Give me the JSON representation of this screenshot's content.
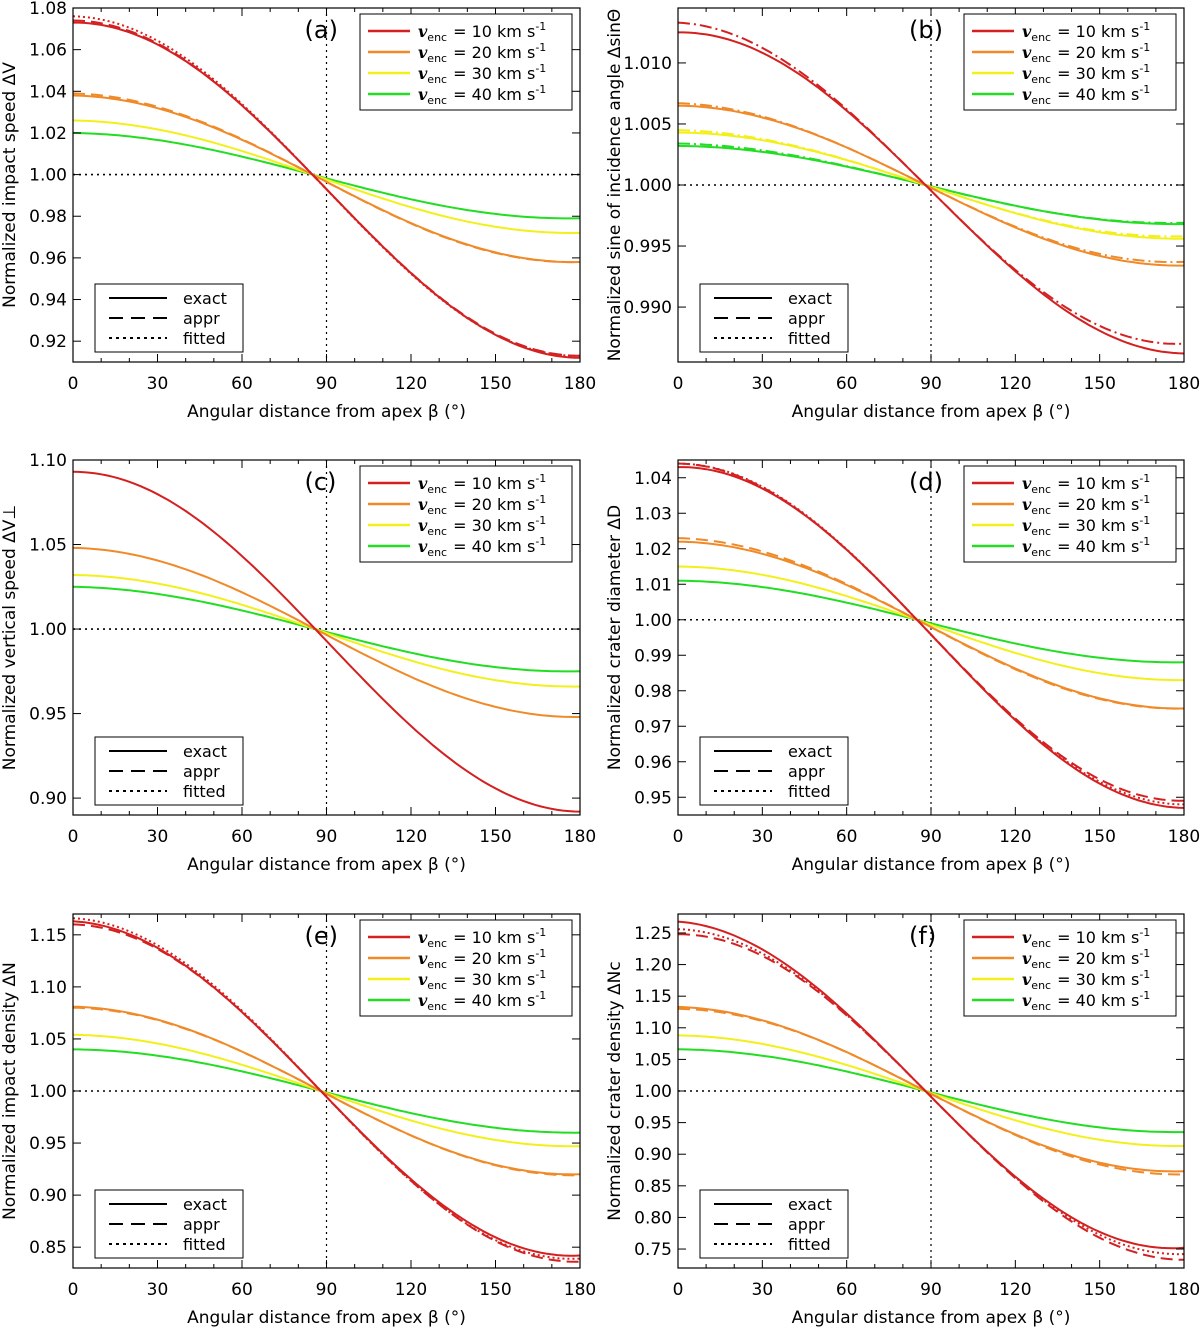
{
  "figure": {
    "x_label": "Angular distance from apex β (°)",
    "legend_velocity": [
      {
        "symbol": "v",
        "subscript": "enc",
        "value_text": "= 10 km s",
        "exponent": "-1",
        "color": "#d42020"
      },
      {
        "symbol": "v",
        "subscript": "enc",
        "value_text": "= 20 km s",
        "exponent": "-1",
        "color": "#f08a28"
      },
      {
        "symbol": "v",
        "subscript": "enc",
        "value_text": "= 30 km s",
        "exponent": "-1",
        "color": "#f2f01a"
      },
      {
        "symbol": "v",
        "subscript": "enc",
        "value_text": "= 40 km s",
        "exponent": "-1",
        "color": "#22dd22"
      }
    ],
    "legend_style": [
      {
        "label": "exact",
        "dash": "solid"
      },
      {
        "label": "appr",
        "dash": "dashed"
      },
      {
        "label": "fitted",
        "dash": "dotted"
      }
    ]
  },
  "chart_data": [
    {
      "panel": "(a)",
      "type": "line",
      "ylabel": "Normalized impact speed ΔV",
      "xlim": [
        0,
        180
      ],
      "ylim": [
        0.91,
        1.08
      ],
      "xticks": [
        "0",
        "30",
        "60",
        "90",
        "120",
        "150",
        "180"
      ],
      "yticks": [
        "0.92",
        "0.94",
        "0.96",
        "0.98",
        "1.00",
        "1.02",
        "1.04",
        "1.06",
        "1.08"
      ],
      "ytick_values": [
        0.92,
        0.94,
        0.96,
        0.98,
        1.0,
        1.02,
        1.04,
        1.06,
        1.08
      ],
      "ref_x": 90,
      "ref_y": 1.0,
      "cross": 85,
      "series": [
        {
          "name": "v_enc = 10 km s^-1",
          "color": "#d42020",
          "max": 1.073,
          "min": 0.912,
          "appr": [
            1.074,
            0.913
          ],
          "dashdot": false,
          "fitted": [
            1.076,
            0.913
          ]
        },
        {
          "name": "v_enc = 20 km s^-1",
          "color": "#f08a28",
          "max": 1.038,
          "min": 0.958,
          "appr": [
            1.039,
            0.958
          ],
          "dashdot": false,
          "fitted": null
        },
        {
          "name": "v_enc = 30 km s^-1",
          "color": "#f2f01a",
          "max": 1.026,
          "min": 0.972,
          "appr": null,
          "dashdot": false,
          "fitted": null
        },
        {
          "name": "v_enc = 40 km s^-1",
          "color": "#22dd22",
          "max": 1.02,
          "min": 0.979,
          "appr": null,
          "dashdot": false,
          "fitted": null
        }
      ]
    },
    {
      "panel": "(b)",
      "type": "line",
      "ylabel": "Normalized sine of incidence angle ΔsinΘ",
      "xlim": [
        0,
        180
      ],
      "ylim": [
        0.9855,
        1.0145
      ],
      "xticks": [
        "0",
        "30",
        "60",
        "90",
        "120",
        "150",
        "180"
      ],
      "yticks": [
        "0.990",
        "0.995",
        "1.000",
        "1.005",
        "1.010"
      ],
      "ytick_values": [
        0.99,
        0.995,
        1.0,
        1.005,
        1.01
      ],
      "ref_x": 90,
      "ref_y": 1.0,
      "cross": 88,
      "series": [
        {
          "name": "v_enc = 10 km s^-1",
          "color": "#d42020",
          "max": 1.0125,
          "min": 0.9862,
          "appr": [
            1.0133,
            0.987
          ],
          "dashdot": true,
          "fitted": null
        },
        {
          "name": "v_enc = 20 km s^-1",
          "color": "#f08a28",
          "max": 1.0065,
          "min": 0.9934,
          "appr": [
            1.0067,
            0.9937
          ],
          "dashdot": true,
          "fitted": null
        },
        {
          "name": "v_enc = 30 km s^-1",
          "color": "#f2f01a",
          "max": 1.0043,
          "min": 0.9956,
          "appr": [
            1.0045,
            0.9958
          ],
          "dashdot": true,
          "fitted": null
        },
        {
          "name": "v_enc = 40 km s^-1",
          "color": "#22dd22",
          "max": 1.0032,
          "min": 0.9968,
          "appr": [
            1.0034,
            0.9969
          ],
          "dashdot": true,
          "fitted": null
        }
      ]
    },
    {
      "panel": "(c)",
      "type": "line",
      "ylabel": "Normalized vertical speed ΔV⊥",
      "xlim": [
        0,
        180
      ],
      "ylim": [
        0.89,
        1.1
      ],
      "xticks": [
        "0",
        "30",
        "60",
        "90",
        "120",
        "150",
        "180"
      ],
      "yticks": [
        "0.90",
        "0.95",
        "1.00",
        "1.05",
        "1.10"
      ],
      "ytick_values": [
        0.9,
        0.95,
        1.0,
        1.05,
        1.1
      ],
      "ref_x": 90,
      "ref_y": 1.0,
      "cross": 86,
      "series": [
        {
          "name": "v_enc = 10 km s^-1",
          "color": "#d42020",
          "max": 1.093,
          "min": 0.892,
          "appr": null,
          "dashdot": false,
          "fitted": null
        },
        {
          "name": "v_enc = 20 km s^-1",
          "color": "#f08a28",
          "max": 1.048,
          "min": 0.948,
          "appr": null,
          "dashdot": false,
          "fitted": null
        },
        {
          "name": "v_enc = 30 km s^-1",
          "color": "#f2f01a",
          "max": 1.032,
          "min": 0.966,
          "appr": null,
          "dashdot": false,
          "fitted": null
        },
        {
          "name": "v_enc = 40 km s^-1",
          "color": "#22dd22",
          "max": 1.025,
          "min": 0.975,
          "appr": null,
          "dashdot": false,
          "fitted": null
        }
      ]
    },
    {
      "panel": "(d)",
      "type": "line",
      "ylabel": "Normalized crater diameter ΔD",
      "xlim": [
        0,
        180
      ],
      "ylim": [
        0.945,
        1.045
      ],
      "xticks": [
        "0",
        "30",
        "60",
        "90",
        "120",
        "150",
        "180"
      ],
      "yticks": [
        "0.95",
        "0.96",
        "0.97",
        "0.98",
        "0.99",
        "1.00",
        "1.01",
        "1.02",
        "1.03",
        "1.04"
      ],
      "ytick_values": [
        0.95,
        0.96,
        0.97,
        0.98,
        0.99,
        1.0,
        1.01,
        1.02,
        1.03,
        1.04
      ],
      "ref_x": 90,
      "ref_y": 1.0,
      "cross": 85,
      "series": [
        {
          "name": "v_enc = 10 km s^-1",
          "color": "#d42020",
          "max": 1.043,
          "min": 0.947,
          "appr": [
            1.044,
            0.949
          ],
          "dashdot": false,
          "fitted": [
            1.044,
            0.948
          ]
        },
        {
          "name": "v_enc = 20 km s^-1",
          "color": "#f08a28",
          "max": 1.022,
          "min": 0.975,
          "appr": [
            1.023,
            0.975
          ],
          "dashdot": false,
          "fitted": null
        },
        {
          "name": "v_enc = 30 km s^-1",
          "color": "#f2f01a",
          "max": 1.015,
          "min": 0.983,
          "appr": null,
          "dashdot": false,
          "fitted": null
        },
        {
          "name": "v_enc = 40 km s^-1",
          "color": "#22dd22",
          "max": 1.011,
          "min": 0.988,
          "appr": null,
          "dashdot": false,
          "fitted": null
        }
      ]
    },
    {
      "panel": "(e)",
      "type": "line",
      "ylabel": "Normalized impact density ΔN",
      "xlim": [
        0,
        180
      ],
      "ylim": [
        0.83,
        1.17
      ],
      "xticks": [
        "0",
        "30",
        "60",
        "90",
        "120",
        "150",
        "180"
      ],
      "yticks": [
        "0.85",
        "0.90",
        "0.95",
        "1.00",
        "1.05",
        "1.10",
        "1.15"
      ],
      "ytick_values": [
        0.85,
        0.9,
        0.95,
        1.0,
        1.05,
        1.1,
        1.15
      ],
      "ref_x": 90,
      "ref_y": 1.0,
      "cross": 88,
      "series": [
        {
          "name": "v_enc = 10 km s^-1",
          "color": "#d42020",
          "max": 1.163,
          "min": 0.842,
          "appr": [
            1.16,
            0.836
          ],
          "dashdot": false,
          "fitted": [
            1.166,
            0.839
          ]
        },
        {
          "name": "v_enc = 20 km s^-1",
          "color": "#f08a28",
          "max": 1.081,
          "min": 0.92,
          "appr": [
            1.08,
            0.919
          ],
          "dashdot": false,
          "fitted": null
        },
        {
          "name": "v_enc = 30 km s^-1",
          "color": "#f2f01a",
          "max": 1.054,
          "min": 0.947,
          "appr": null,
          "dashdot": false,
          "fitted": null
        },
        {
          "name": "v_enc = 40 km s^-1",
          "color": "#22dd22",
          "max": 1.04,
          "min": 0.96,
          "appr": null,
          "dashdot": false,
          "fitted": null
        }
      ]
    },
    {
      "panel": "(f)",
      "type": "line",
      "ylabel": "Normalized crater density ΔNc",
      "xlim": [
        0,
        180
      ],
      "ylim": [
        0.72,
        1.28
      ],
      "xticks": [
        "0",
        "30",
        "60",
        "90",
        "120",
        "150",
        "180"
      ],
      "yticks": [
        "0.75",
        "0.80",
        "0.85",
        "0.90",
        "0.95",
        "1.00",
        "1.05",
        "1.10",
        "1.15",
        "1.20",
        "1.25"
      ],
      "ytick_values": [
        0.75,
        0.8,
        0.85,
        0.9,
        0.95,
        1.0,
        1.05,
        1.1,
        1.15,
        1.2,
        1.25
      ],
      "ref_x": 90,
      "ref_y": 1.0,
      "cross": 88,
      "series": [
        {
          "name": "v_enc = 10 km s^-1",
          "color": "#d42020",
          "max": 1.268,
          "min": 0.752,
          "appr": [
            1.248,
            0.733
          ],
          "dashdot": false,
          "fitted": [
            1.256,
            0.742
          ]
        },
        {
          "name": "v_enc = 20 km s^-1",
          "color": "#f08a28",
          "max": 1.133,
          "min": 0.873,
          "appr": [
            1.13,
            0.868
          ],
          "dashdot": false,
          "fitted": null
        },
        {
          "name": "v_enc = 30 km s^-1",
          "color": "#f2f01a",
          "max": 1.088,
          "min": 0.913,
          "appr": null,
          "dashdot": false,
          "fitted": null
        },
        {
          "name": "v_enc = 40 km s^-1",
          "color": "#22dd22",
          "max": 1.066,
          "min": 0.935,
          "appr": null,
          "dashdot": false,
          "fitted": null
        }
      ]
    }
  ]
}
